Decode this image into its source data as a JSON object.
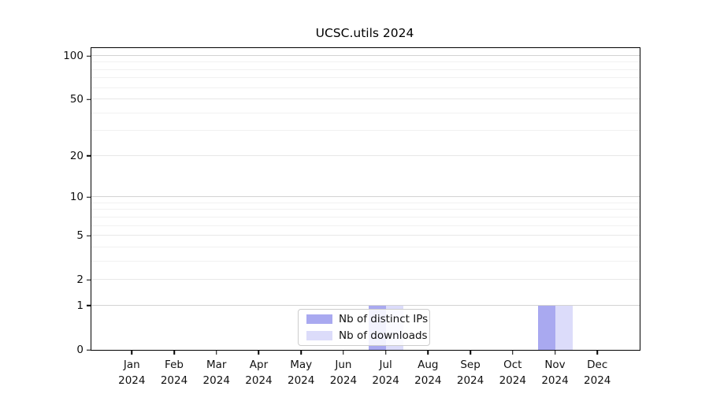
{
  "title": "UCSC.utils 2024",
  "legend": {
    "items": [
      {
        "label": "Nb of distinct IPs",
        "color": "#a9a9f0"
      },
      {
        "label": "Nb of downloads",
        "color": "#dcdcfa"
      }
    ]
  },
  "chart_data": {
    "type": "bar",
    "title": "UCSC.utils 2024",
    "categories": [
      "Jan",
      "Feb",
      "Mar",
      "Apr",
      "May",
      "Jun",
      "Jul",
      "Aug",
      "Sep",
      "Oct",
      "Nov",
      "Dec"
    ],
    "x_year": "2024",
    "series": [
      {
        "name": "Nb of distinct IPs",
        "color": "#a9a9f0",
        "values": [
          0,
          0,
          0,
          0,
          0,
          0,
          1,
          0,
          0,
          0,
          1,
          0
        ]
      },
      {
        "name": "Nb of downloads",
        "color": "#dcdcfa",
        "values": [
          0,
          0,
          0,
          0,
          0,
          0,
          1,
          0,
          0,
          0,
          1,
          0
        ]
      }
    ],
    "xlabel": "",
    "ylabel": "",
    "yscale": "log1p",
    "ylim": [
      0,
      113.3
    ],
    "y_major_ticks": [
      0,
      1,
      2,
      5,
      10,
      20,
      50,
      100
    ],
    "y_decade_ticks": [
      1,
      10,
      100
    ],
    "y_minor_gridlines": [
      3,
      4,
      6,
      7,
      8,
      9,
      30,
      40,
      60,
      70,
      80,
      90
    ],
    "grid": "horizontal",
    "legend_position": "lower center"
  }
}
